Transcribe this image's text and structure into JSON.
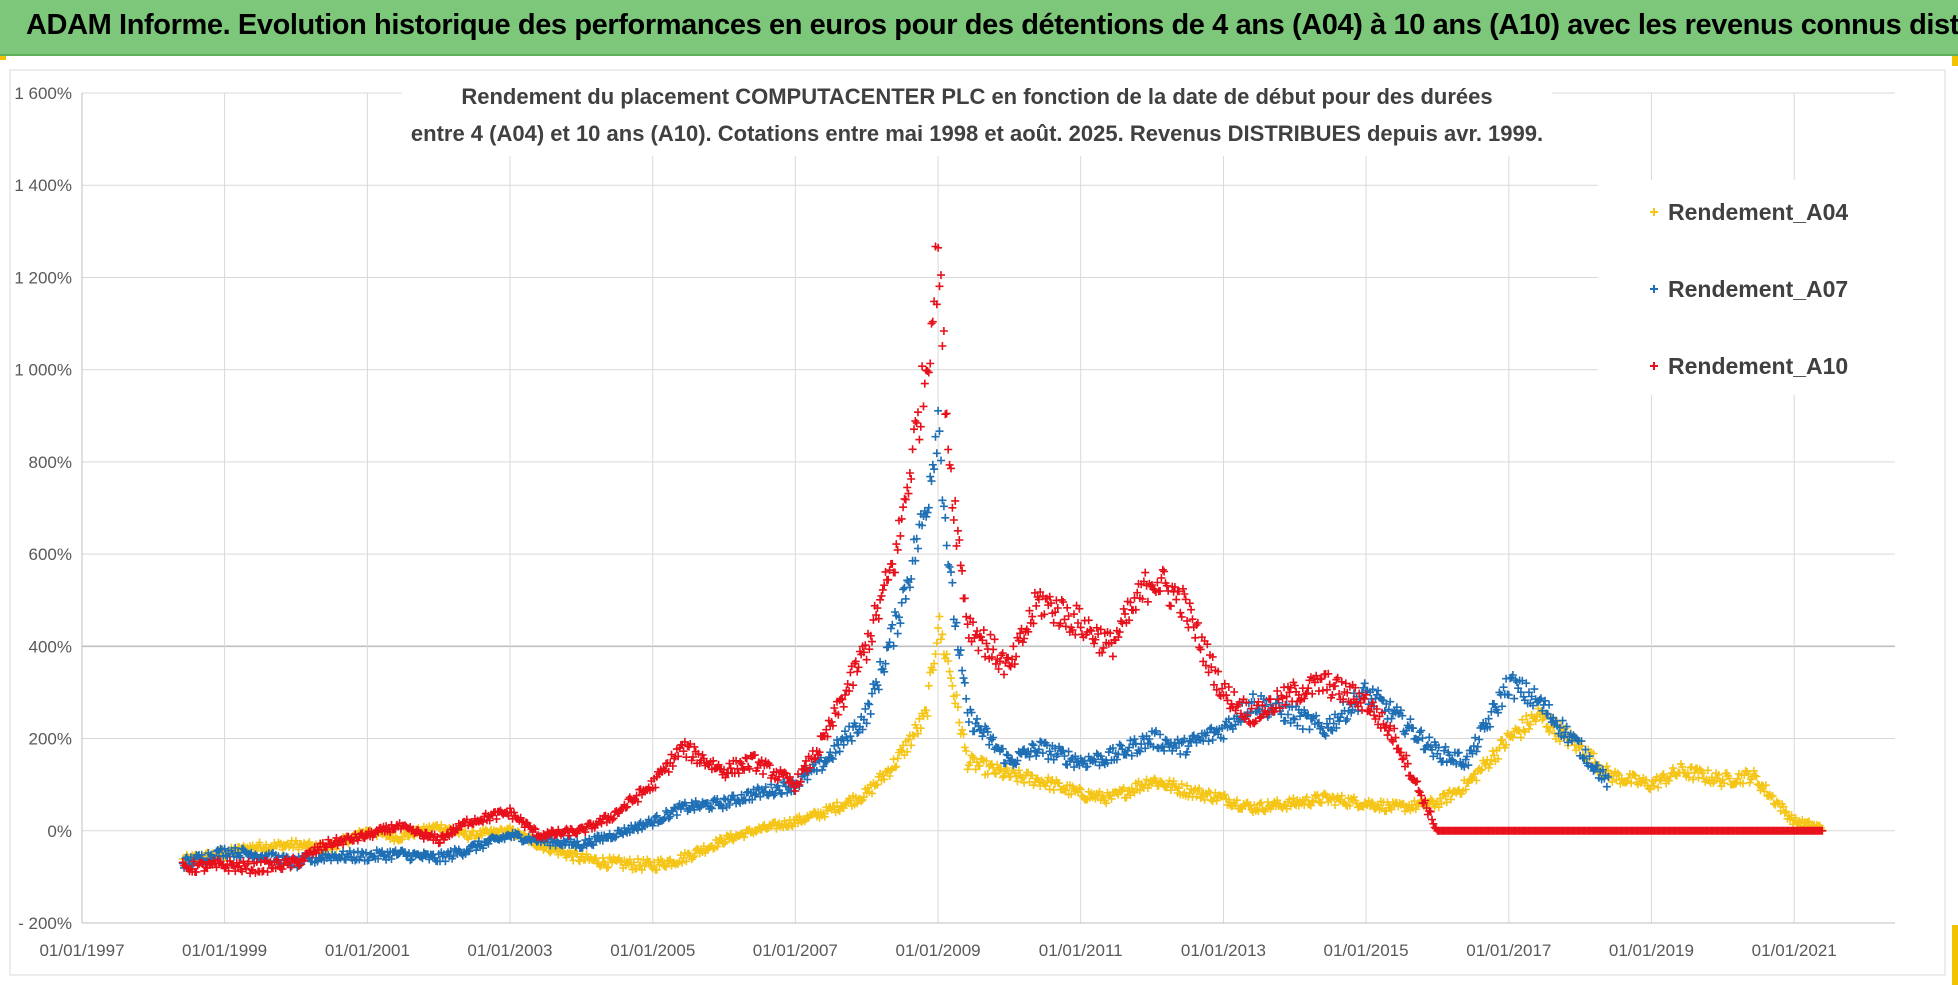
{
  "banner": {
    "text": "ADAM Informe. Evolution historique des performances en euros pour des détentions de 4 ans (A04) à 10 ans (A10) avec les revenus connus distribués"
  },
  "colors": {
    "banner_bg": "#7dc77a",
    "A04": "#f5c518",
    "A07": "#1f6fb5",
    "A10": "#e8101b"
  },
  "chart_data": {
    "type": "scatter",
    "title_lines": [
      "Rendement du placement COMPUTACENTER PLC en fonction de la date de début pour des durées",
      "entre 4 (A04) et 10 ans (A10). Cotations entre mai 1998 et août. 2025. Revenus DISTRIBUES depuis avr. 1999."
    ],
    "x_tick_labels": [
      "01/01/1997",
      "01/01/1999",
      "01/01/2001",
      "01/01/2003",
      "01/01/2005",
      "01/01/2007",
      "01/01/2009",
      "01/01/2011",
      "01/01/2013",
      "01/01/2015",
      "01/01/2017",
      "01/01/2019",
      "01/01/2021"
    ],
    "y_tick_labels": [
      "- 200%",
      "0%",
      "200%",
      "400%",
      "600%",
      "800%",
      "1 000%",
      "1 200%",
      "1 400%",
      "1 600%"
    ],
    "xlim": [
      "01/01/1997",
      "01/06/2022"
    ],
    "ylim": [
      -200,
      1600
    ],
    "marker": "+",
    "legend_position": "top-right",
    "series": [
      {
        "name": "Rendement_A04",
        "color": "#f5c518",
        "x": [
          "01/06/1998",
          "01/01/1999",
          "01/06/1999",
          "01/01/2000",
          "01/06/2000",
          "01/01/2001",
          "01/06/2001",
          "01/01/2002",
          "01/06/2002",
          "01/01/2003",
          "01/06/2003",
          "01/01/2004",
          "01/06/2004",
          "01/01/2005",
          "01/06/2005",
          "01/01/2006",
          "01/06/2006",
          "01/01/2007",
          "01/06/2007",
          "01/01/2008",
          "01/06/2008",
          "01/11/2008",
          "01/01/2009",
          "01/03/2009",
          "01/06/2009",
          "01/01/2010",
          "01/06/2010",
          "01/01/2011",
          "01/06/2011",
          "01/01/2012",
          "01/06/2012",
          "01/01/2013",
          "01/06/2013",
          "01/01/2014",
          "01/06/2014",
          "01/01/2015",
          "01/06/2015",
          "01/01/2016",
          "01/06/2016",
          "01/01/2017",
          "01/06/2017",
          "01/01/2018",
          "01/06/2018",
          "01/01/2019",
          "01/06/2019",
          "01/01/2020",
          "01/06/2020",
          "01/01/2021",
          "01/06/2021"
        ],
        "y": [
          -65,
          -50,
          -35,
          -30,
          -40,
          0,
          -15,
          10,
          -10,
          0,
          -30,
          -60,
          -70,
          -75,
          -60,
          -20,
          0,
          20,
          40,
          80,
          150,
          250,
          450,
          350,
          150,
          120,
          110,
          80,
          70,
          110,
          90,
          70,
          50,
          60,
          70,
          60,
          50,
          60,
          100,
          200,
          250,
          180,
          120,
          100,
          130,
          110,
          120,
          20,
          5
        ]
      },
      {
        "name": "Rendement_A07",
        "color": "#1f6fb5",
        "x": [
          "01/06/1998",
          "01/01/1999",
          "01/06/1999",
          "01/01/2000",
          "01/06/2000",
          "01/01/2001",
          "01/06/2001",
          "01/01/2002",
          "01/06/2002",
          "01/01/2003",
          "01/06/2003",
          "01/01/2004",
          "01/06/2004",
          "01/01/2005",
          "01/06/2005",
          "01/01/2006",
          "01/06/2006",
          "01/01/2007",
          "01/06/2007",
          "01/01/2008",
          "01/06/2008",
          "01/11/2008",
          "01/01/2009",
          "01/03/2009",
          "01/06/2009",
          "01/01/2010",
          "01/06/2010",
          "01/01/2011",
          "01/06/2011",
          "01/01/2012",
          "01/06/2012",
          "01/01/2013",
          "01/06/2013",
          "01/01/2014",
          "01/06/2014",
          "01/01/2015",
          "01/06/2015",
          "01/01/2016",
          "01/06/2016",
          "01/01/2017",
          "01/06/2017",
          "01/01/2018",
          "01/06/2018"
        ],
        "y": [
          -70,
          -45,
          -50,
          -70,
          -55,
          -55,
          -50,
          -60,
          -40,
          -10,
          -20,
          -30,
          -10,
          20,
          50,
          60,
          80,
          100,
          150,
          250,
          450,
          700,
          900,
          550,
          250,
          150,
          180,
          150,
          160,
          200,
          180,
          220,
          280,
          250,
          220,
          300,
          250,
          170,
          150,
          320,
          280,
          180,
          100
        ]
      },
      {
        "name": "Rendement_A10",
        "color": "#e8101b",
        "x": [
          "01/06/1998",
          "01/01/1999",
          "01/06/1999",
          "01/01/2000",
          "01/06/2000",
          "01/01/2001",
          "01/06/2001",
          "01/01/2002",
          "01/06/2002",
          "01/01/2003",
          "01/06/2003",
          "01/01/2004",
          "01/06/2004",
          "01/01/2005",
          "01/06/2005",
          "01/01/2006",
          "01/06/2006",
          "01/01/2007",
          "01/06/2007",
          "01/01/2008",
          "01/06/2008",
          "01/11/2008",
          "01/01/2009",
          "01/03/2009",
          "01/06/2009",
          "01/01/2010",
          "01/06/2010",
          "01/01/2011",
          "01/06/2011",
          "01/01/2012",
          "01/06/2012",
          "01/01/2013",
          "01/06/2013",
          "01/01/2014",
          "01/06/2014",
          "01/01/2015",
          "01/06/2015",
          "01/01/2016",
          "01/01/2018",
          "01/01/2020",
          "01/06/2021"
        ],
        "y": [
          -80,
          -75,
          -80,
          -70,
          -30,
          -10,
          10,
          -20,
          20,
          40,
          -10,
          0,
          30,
          100,
          180,
          130,
          150,
          100,
          200,
          400,
          600,
          1000,
          1250,
          800,
          450,
          350,
          500,
          450,
          400,
          550,
          500,
          300,
          250,
          300,
          320,
          280,
          200,
          0,
          0,
          0,
          0
        ]
      }
    ]
  }
}
